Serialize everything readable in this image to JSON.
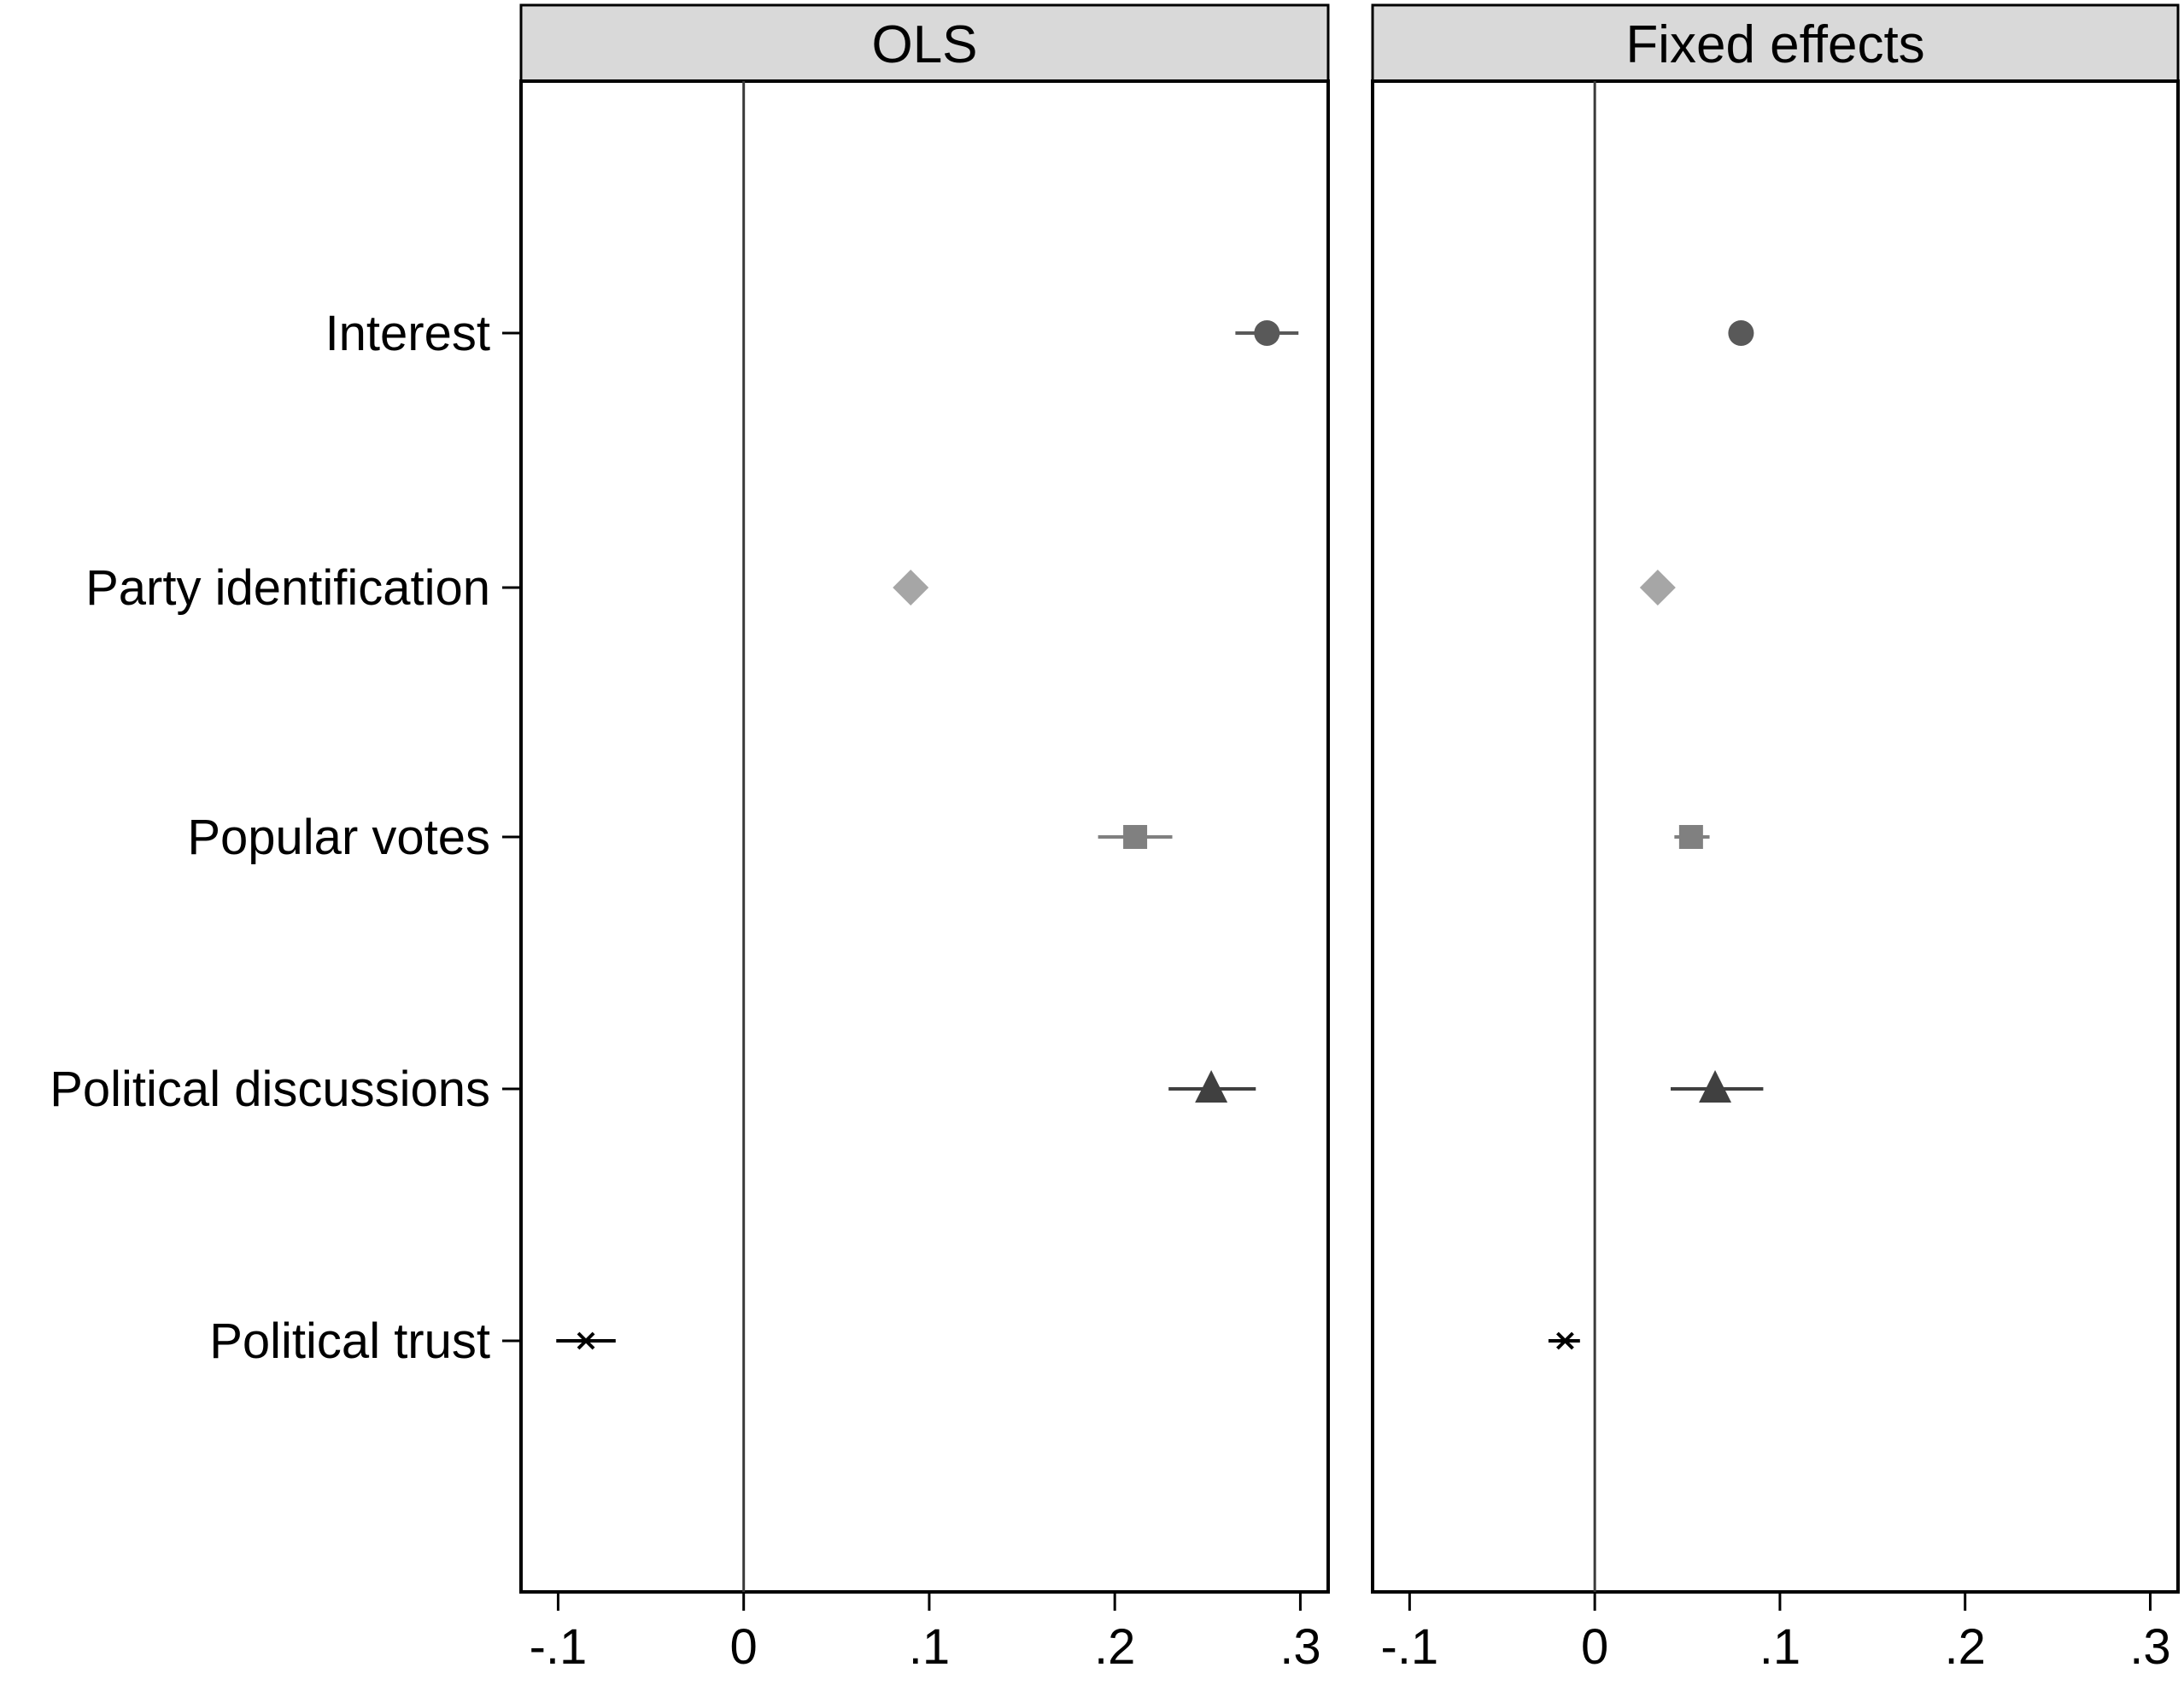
{
  "chart_data": {
    "type": "scatter",
    "subtype": "coefficient-plot",
    "categories": [
      "Interest",
      "Party identification",
      "Popular votes",
      "Political discussions",
      "Political trust"
    ],
    "xlim": [
      -0.12,
      0.315
    ],
    "xticks": [
      -0.1,
      0,
      0.1,
      0.2,
      0.3
    ],
    "xtick_labels": [
      "-.1",
      "0",
      ".1",
      ".2",
      ".3"
    ],
    "reference_line_x": 0,
    "grid": false,
    "markers": [
      {
        "category": "Interest",
        "shape": "circle",
        "color": "#595959"
      },
      {
        "category": "Party identification",
        "shape": "diamond",
        "color": "#a6a6a6"
      },
      {
        "category": "Popular votes",
        "shape": "square",
        "color": "#808080"
      },
      {
        "category": "Political discussions",
        "shape": "triangle",
        "color": "#404040"
      },
      {
        "category": "Political trust",
        "shape": "x",
        "color": "#000000"
      }
    ],
    "panels": [
      {
        "title": "OLS",
        "points": [
          {
            "category": "Interest",
            "estimate": 0.282,
            "ci_low": 0.265,
            "ci_high": 0.299
          },
          {
            "category": "Party identification",
            "estimate": 0.09,
            "ci_low": 0.09,
            "ci_high": 0.09
          },
          {
            "category": "Popular votes",
            "estimate": 0.211,
            "ci_low": 0.191,
            "ci_high": 0.231
          },
          {
            "category": "Political discussions",
            "estimate": 0.252,
            "ci_low": 0.229,
            "ci_high": 0.276
          },
          {
            "category": "Political trust",
            "estimate": -0.085,
            "ci_low": -0.101,
            "ci_high": -0.069
          }
        ]
      },
      {
        "title": "Fixed effects",
        "points": [
          {
            "category": "Interest",
            "estimate": 0.079,
            "ci_low": 0.079,
            "ci_high": 0.079
          },
          {
            "category": "Party identification",
            "estimate": 0.034,
            "ci_low": 0.034,
            "ci_high": 0.034
          },
          {
            "category": "Popular votes",
            "estimate": 0.052,
            "ci_low": 0.043,
            "ci_high": 0.062
          },
          {
            "category": "Political discussions",
            "estimate": 0.065,
            "ci_low": 0.041,
            "ci_high": 0.091
          },
          {
            "category": "Political trust",
            "estimate": -0.016,
            "ci_low": -0.025,
            "ci_high": -0.008
          }
        ]
      }
    ]
  }
}
